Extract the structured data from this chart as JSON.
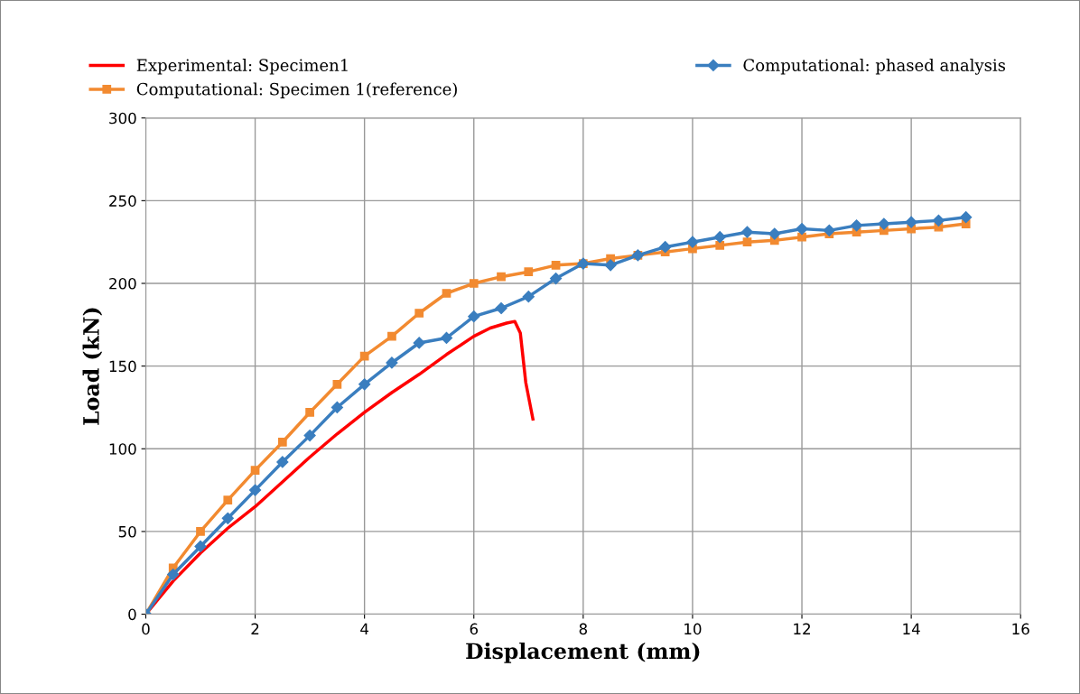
{
  "chart_data": {
    "type": "line",
    "xlabel": "Displacement (mm)",
    "ylabel": "Load (kN)",
    "xlim": [
      0,
      16
    ],
    "xticks": [
      0,
      2,
      4,
      6,
      8,
      10,
      12,
      14,
      16
    ],
    "ylim": [
      0,
      300
    ],
    "yticks": [
      0,
      50,
      100,
      150,
      200,
      250,
      300
    ],
    "grid": true,
    "legend": "top",
    "series": [
      {
        "name": "Experimental: Specimen1",
        "color": "#ff0000",
        "marker": "none",
        "x": [
          0,
          0.5,
          1,
          1.5,
          2,
          2.5,
          3,
          3.5,
          4,
          4.5,
          5,
          5.5,
          6,
          6.3,
          6.6,
          6.75,
          6.85,
          6.95,
          7.08
        ],
        "values": [
          0,
          20,
          37,
          52,
          65,
          80,
          95,
          109,
          122,
          134,
          145,
          157,
          168,
          173,
          176,
          177,
          170,
          140,
          118
        ]
      },
      {
        "name": "Computational: Specimen 1(reference)",
        "color": "#f28a30",
        "marker": "square",
        "x": [
          0,
          0.5,
          1,
          1.5,
          2,
          2.5,
          3,
          3.5,
          4,
          4.5,
          5,
          5.5,
          6,
          6.5,
          7,
          7.5,
          8,
          8.5,
          9,
          9.5,
          10,
          10.5,
          11,
          11.5,
          12,
          12.5,
          13,
          13.5,
          14,
          14.5,
          15
        ],
        "values": [
          0,
          28,
          50,
          69,
          87,
          104,
          122,
          139,
          156,
          168,
          182,
          194,
          200,
          204,
          207,
          211,
          212,
          215,
          217,
          219,
          221,
          223,
          225,
          226,
          228,
          230,
          231,
          232,
          233,
          234,
          236
        ]
      },
      {
        "name": "Computational: phased analysis",
        "color": "#3a7ebf",
        "marker": "diamond",
        "x": [
          0,
          0.5,
          1,
          1.5,
          2,
          2.5,
          3,
          3.5,
          4,
          4.5,
          5,
          5.5,
          6,
          6.5,
          7,
          7.5,
          8,
          8.5,
          9,
          9.5,
          10,
          10.5,
          11,
          11.5,
          12,
          12.5,
          13,
          13.5,
          14,
          14.5,
          15
        ],
        "values": [
          0,
          24,
          41,
          58,
          75,
          92,
          108,
          125,
          139,
          152,
          164,
          167,
          180,
          185,
          192,
          203,
          212,
          211,
          217,
          222,
          225,
          228,
          231,
          230,
          233,
          232,
          235,
          236,
          237,
          238,
          240
        ]
      }
    ]
  }
}
